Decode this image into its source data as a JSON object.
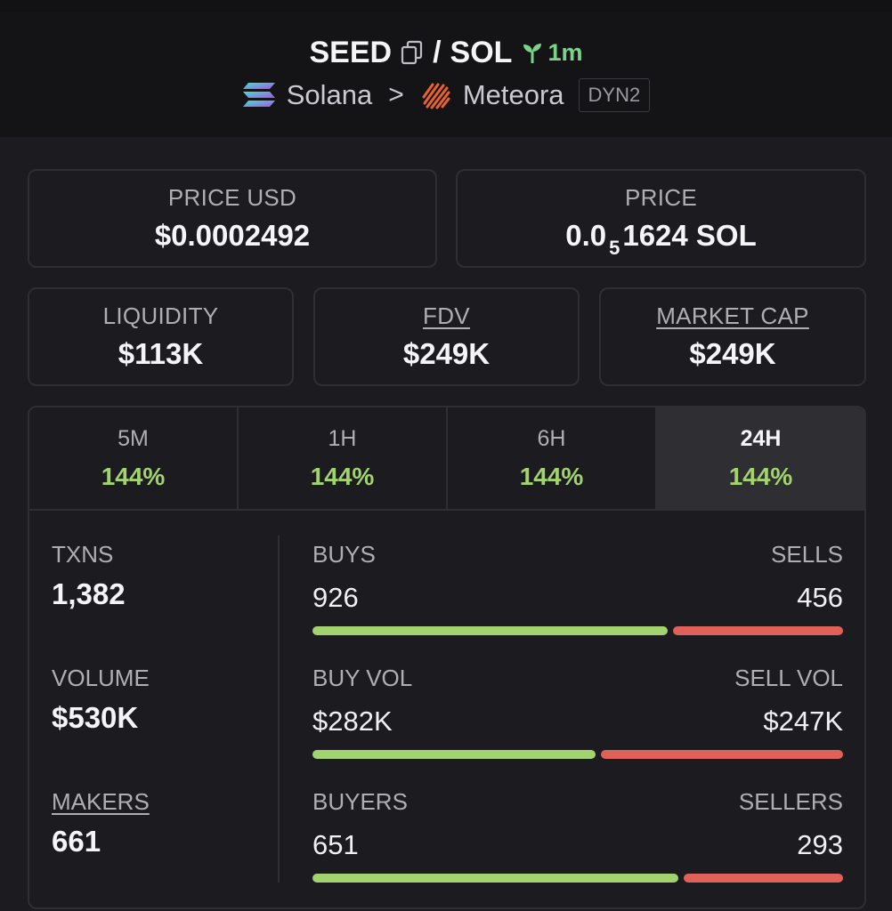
{
  "header": {
    "base_symbol": "SEED",
    "separator": "/",
    "quote_symbol": "SOL",
    "age": "1m",
    "chain": "Solana",
    "chevron": ">",
    "dex": "Meteora",
    "dex_badge": "DYN2",
    "colors": {
      "age": "#7bd389"
    }
  },
  "price_cards": {
    "price_usd": {
      "label": "PRICE USD",
      "value": "$0.0002492"
    },
    "price_native": {
      "label": "PRICE",
      "prefix": "0.0",
      "zeros": "5",
      "suffix": "1624 SOL"
    }
  },
  "metric_cards": {
    "liquidity": {
      "label": "LIQUIDITY",
      "value": "$113K"
    },
    "fdv": {
      "label": "FDV",
      "value": "$249K"
    },
    "market_cap": {
      "label": "MARKET CAP",
      "value": "$249K"
    }
  },
  "tabs": [
    {
      "label": "5M",
      "value": "144%"
    },
    {
      "label": "1H",
      "value": "144%"
    },
    {
      "label": "6H",
      "value": "144%"
    },
    {
      "label": "24H",
      "value": "144%",
      "active": true
    }
  ],
  "left_stats": {
    "txns": {
      "label": "TXNS",
      "value": "1,382"
    },
    "volume": {
      "label": "VOLUME",
      "value": "$530K"
    },
    "makers": {
      "label": "MAKERS",
      "value": "661"
    }
  },
  "ratios": {
    "txns": {
      "left_label": "BUYS",
      "left_value": "926",
      "right_label": "SELLS",
      "right_value": "456",
      "buy_fraction": 0.67
    },
    "volume": {
      "left_label": "BUY VOL",
      "left_value": "$282K",
      "right_label": "SELL VOL",
      "right_value": "$247K",
      "buy_fraction": 0.533
    },
    "makers": {
      "left_label": "BUYERS",
      "left_value": "651",
      "right_label": "SELLERS",
      "right_value": "293",
      "buy_fraction": 0.69
    }
  },
  "colors": {
    "buy": "#a3d36e",
    "sell": "#e0605a",
    "positive": "#a3d36e"
  }
}
